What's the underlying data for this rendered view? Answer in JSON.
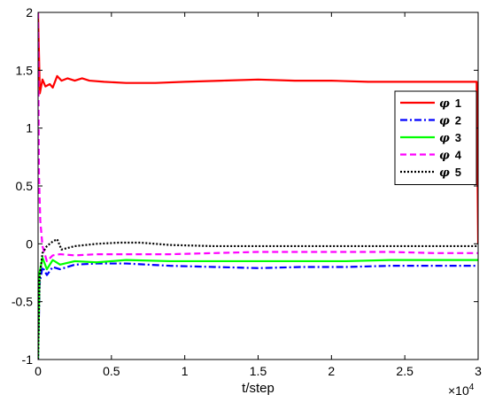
{
  "chart_data": {
    "type": "line",
    "title": "",
    "xlabel": "t/step",
    "ylabel": "",
    "x_multiplier_label": "×10",
    "x_multiplier_exponent": "4",
    "xlim": [
      0,
      3
    ],
    "ylim": [
      -1,
      2
    ],
    "xticks": [
      0,
      0.5,
      1,
      1.5,
      2,
      2.5,
      3
    ],
    "xtick_labels": [
      "0",
      "0.5",
      "1",
      "1.5",
      "2",
      "2.5",
      "3"
    ],
    "yticks": [
      -1,
      -0.5,
      0,
      0.5,
      1,
      1.5,
      2
    ],
    "ytick_labels": [
      "-1",
      "-0.5",
      "0",
      "0.5",
      "1",
      "1.5",
      "2"
    ],
    "grid": false,
    "legend_position": "top-right",
    "series": [
      {
        "name": "1",
        "color": "#ff0000",
        "dash": "solid",
        "points": [
          [
            0,
            2
          ],
          [
            0.012,
            1.3
          ],
          [
            0.03,
            1.42
          ],
          [
            0.05,
            1.36
          ],
          [
            0.08,
            1.38
          ],
          [
            0.1,
            1.35
          ],
          [
            0.13,
            1.45
          ],
          [
            0.16,
            1.41
          ],
          [
            0.2,
            1.43
          ],
          [
            0.25,
            1.41
          ],
          [
            0.3,
            1.43
          ],
          [
            0.35,
            1.41
          ],
          [
            0.45,
            1.4
          ],
          [
            0.6,
            1.39
          ],
          [
            0.8,
            1.39
          ],
          [
            1.0,
            1.4
          ],
          [
            1.25,
            1.41
          ],
          [
            1.5,
            1.42
          ],
          [
            1.75,
            1.41
          ],
          [
            2.0,
            1.41
          ],
          [
            2.25,
            1.4
          ],
          [
            2.5,
            1.4
          ],
          [
            2.75,
            1.4
          ],
          [
            2.99,
            1.4
          ],
          [
            3.0,
            0.0
          ]
        ]
      },
      {
        "name": "2",
        "color": "#0000ff",
        "dash": "dashdot",
        "points": [
          [
            0,
            -1
          ],
          [
            0.01,
            -0.35
          ],
          [
            0.03,
            -0.2
          ],
          [
            0.06,
            -0.27
          ],
          [
            0.1,
            -0.2
          ],
          [
            0.15,
            -0.22
          ],
          [
            0.25,
            -0.18
          ],
          [
            0.4,
            -0.17
          ],
          [
            0.6,
            -0.17
          ],
          [
            0.9,
            -0.19
          ],
          [
            1.2,
            -0.2
          ],
          [
            1.5,
            -0.21
          ],
          [
            1.8,
            -0.2
          ],
          [
            2.1,
            -0.2
          ],
          [
            2.4,
            -0.19
          ],
          [
            2.7,
            -0.19
          ],
          [
            3.0,
            -0.19
          ]
        ]
      },
      {
        "name": "3",
        "color": "#00ff00",
        "dash": "solid",
        "points": [
          [
            0,
            -1
          ],
          [
            0.01,
            -0.25
          ],
          [
            0.03,
            -0.12
          ],
          [
            0.06,
            -0.22
          ],
          [
            0.1,
            -0.14
          ],
          [
            0.15,
            -0.18
          ],
          [
            0.25,
            -0.15
          ],
          [
            0.4,
            -0.16
          ],
          [
            0.6,
            -0.14
          ],
          [
            0.9,
            -0.15
          ],
          [
            1.2,
            -0.15
          ],
          [
            1.5,
            -0.15
          ],
          [
            1.8,
            -0.15
          ],
          [
            2.1,
            -0.15
          ],
          [
            2.4,
            -0.14
          ],
          [
            2.7,
            -0.14
          ],
          [
            3.0,
            -0.14
          ]
        ]
      },
      {
        "name": "4",
        "color": "#ff00ff",
        "dash": "dashed",
        "points": [
          [
            0,
            2
          ],
          [
            0.006,
            0.6
          ],
          [
            0.015,
            0.2
          ],
          [
            0.03,
            -0.02
          ],
          [
            0.06,
            -0.15
          ],
          [
            0.1,
            -0.1
          ],
          [
            0.15,
            -0.09
          ],
          [
            0.25,
            -0.1
          ],
          [
            0.4,
            -0.09
          ],
          [
            0.6,
            -0.09
          ],
          [
            0.9,
            -0.09
          ],
          [
            1.2,
            -0.08
          ],
          [
            1.5,
            -0.07
          ],
          [
            1.8,
            -0.07
          ],
          [
            2.1,
            -0.07
          ],
          [
            2.4,
            -0.07
          ],
          [
            2.7,
            -0.08
          ],
          [
            3.0,
            -0.08
          ]
        ]
      },
      {
        "name": "5",
        "color": "#000000",
        "dash": "dotted",
        "points": [
          [
            0,
            -1
          ],
          [
            0.01,
            -0.3
          ],
          [
            0.03,
            -0.08
          ],
          [
            0.06,
            -0.02
          ],
          [
            0.1,
            0.02
          ],
          [
            0.13,
            0.04
          ],
          [
            0.16,
            -0.05
          ],
          [
            0.25,
            -0.02
          ],
          [
            0.4,
            0.0
          ],
          [
            0.55,
            0.01
          ],
          [
            0.7,
            0.01
          ],
          [
            0.9,
            -0.01
          ],
          [
            1.2,
            -0.02
          ],
          [
            1.5,
            -0.02
          ],
          [
            1.8,
            -0.02
          ],
          [
            2.1,
            -0.02
          ],
          [
            2.4,
            -0.02
          ],
          [
            2.7,
            -0.02
          ],
          [
            3.0,
            -0.02
          ]
        ]
      }
    ]
  }
}
